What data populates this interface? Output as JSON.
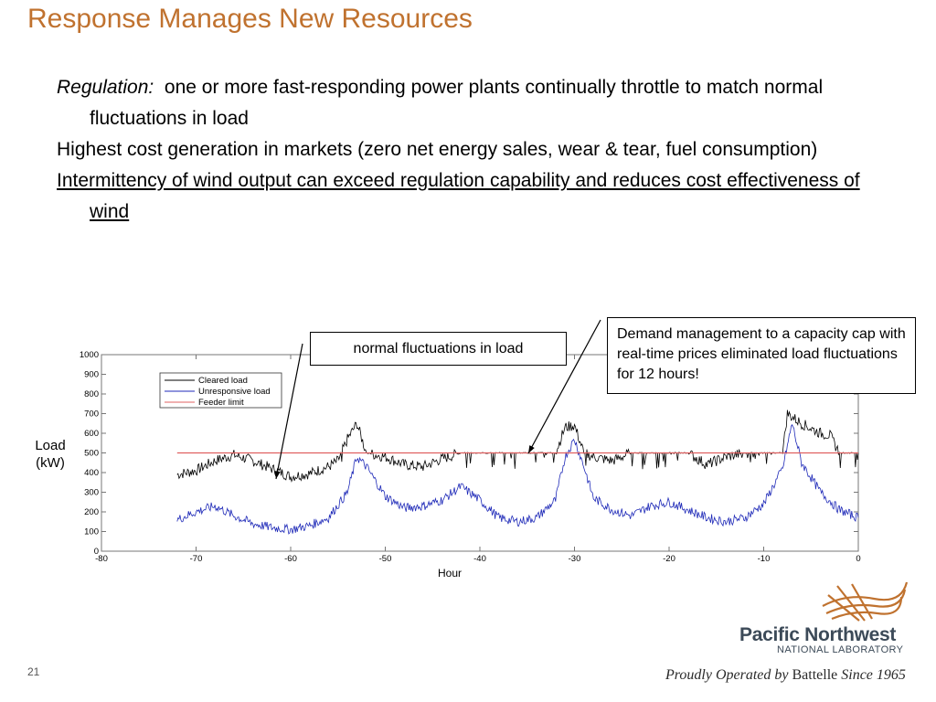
{
  "slide": {
    "title": "Response Manages New Resources",
    "lead": "Regulation:",
    "lines": [
      "one or more fast-responding power plants continually throttle to match normal fluctuations in load",
      "Highest cost generation in markets (zero net energy sales, wear & tear, fuel consumption)",
      "Intermittency of wind output can exceed regulation capability and reduces cost effectiveness of wind"
    ],
    "callout_load": "normal fluctuations in load",
    "callout_demand": "Demand management to a capacity cap with real-time prices eliminated load fluctuations for 12 hours!",
    "slide_number": "21",
    "logo_main": "Pacific Northwest",
    "logo_sub": "NATIONAL LABORATORY",
    "footer_a": "Proudly Operated by",
    "footer_b": "Battelle",
    "footer_c": "Since 1965"
  },
  "colors": {
    "title": "#c0722f",
    "cleared": "#000000",
    "unresponsive": "#1f2ab8",
    "limit": "#e06060",
    "logo": "#c0722f"
  },
  "chart_data": {
    "type": "line",
    "xlabel": "Hour",
    "ylabel": "Load\n(kW)",
    "xlim": [
      -80,
      0
    ],
    "ylim": [
      0,
      1000
    ],
    "xticks": [
      -80,
      -70,
      -60,
      -50,
      -40,
      -30,
      -20,
      -10,
      0
    ],
    "yticks": [
      0,
      100,
      200,
      300,
      400,
      500,
      600,
      700,
      800,
      900,
      1000
    ],
    "legend_position": "top-left",
    "series": [
      {
        "name": "Cleared load",
        "x": [
          -72,
          -70,
          -68,
          -66,
          -64,
          -62,
          -60,
          -58,
          -56,
          -55,
          -54,
          -53,
          -52,
          -50,
          -48,
          -46,
          -44,
          -42,
          -40,
          -38,
          -36,
          -34,
          -32,
          -31,
          -30,
          -29,
          -28,
          -26,
          -24,
          -22,
          -20,
          -18,
          -16,
          -14,
          -12,
          -10,
          -8,
          -7.5,
          -6,
          -4,
          -3,
          -2,
          0
        ],
        "y": [
          390,
          410,
          460,
          490,
          460,
          420,
          380,
          395,
          430,
          460,
          570,
          650,
          500,
          480,
          440,
          430,
          470,
          500,
          500,
          500,
          500,
          500,
          500,
          630,
          640,
          500,
          480,
          460,
          500,
          500,
          500,
          500,
          440,
          480,
          500,
          500,
          500,
          700,
          650,
          600,
          590,
          500,
          500
        ]
      },
      {
        "name": "Unresponsive load",
        "x": [
          -72,
          -70,
          -68,
          -66,
          -64,
          -62,
          -60,
          -58,
          -56,
          -54,
          -53,
          -52,
          -50,
          -48,
          -46,
          -44,
          -42,
          -40,
          -38,
          -36,
          -34,
          -32,
          -31,
          -30,
          -29,
          -28,
          -26,
          -24,
          -22,
          -20,
          -18,
          -16,
          -14,
          -12,
          -10,
          -8,
          -7,
          -6,
          -4,
          -2,
          0
        ],
        "y": [
          160,
          200,
          230,
          180,
          140,
          120,
          110,
          130,
          170,
          300,
          480,
          430,
          280,
          220,
          230,
          260,
          330,
          260,
          170,
          150,
          170,
          260,
          480,
          570,
          430,
          270,
          210,
          180,
          230,
          250,
          210,
          170,
          150,
          170,
          240,
          420,
          650,
          450,
          300,
          210,
          170
        ]
      },
      {
        "name": "Feeder limit",
        "x": [
          -72,
          0
        ],
        "y": [
          500,
          500
        ]
      }
    ]
  }
}
